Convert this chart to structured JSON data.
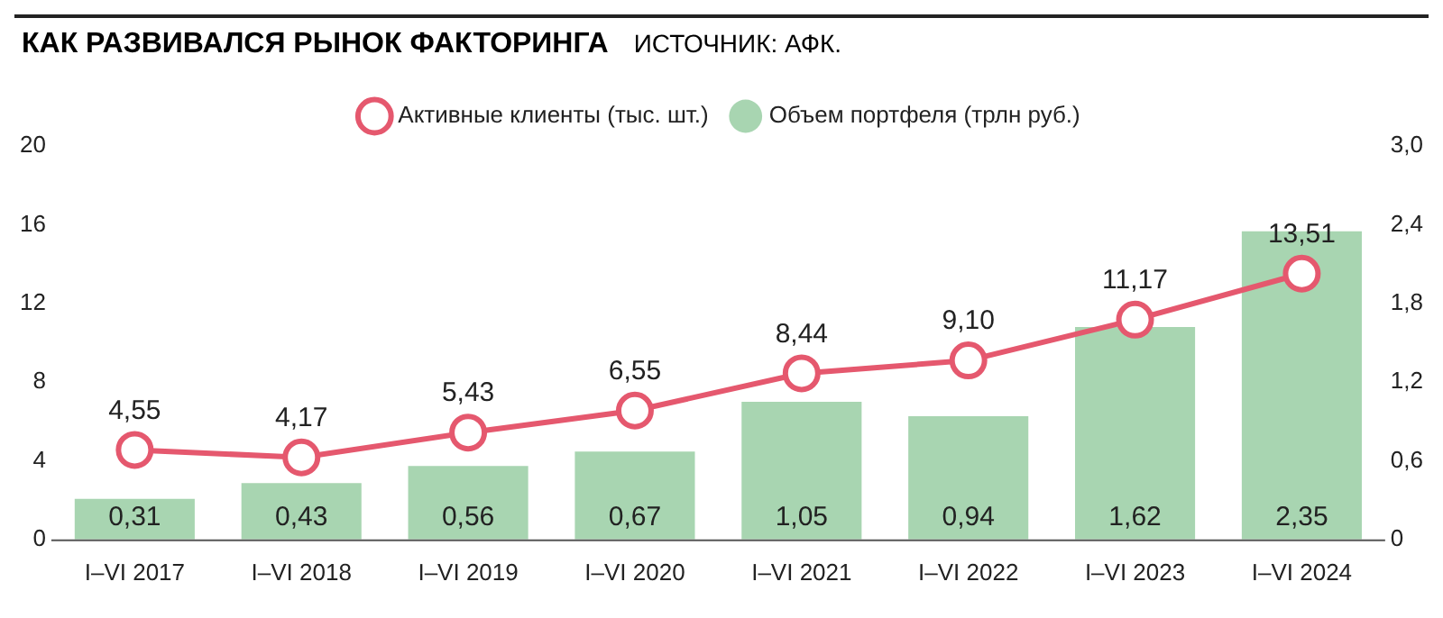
{
  "chart_data": {
    "type": "bar",
    "title": "КАК РАЗВИВАЛСЯ РЫНОК ФАКТОРИНГА",
    "subtitle": "ИСТОЧНИК: АФК.",
    "categories": [
      "I–VI 2017",
      "I–VI 2018",
      "I–VI 2019",
      "I–VI 2020",
      "I–VI 2021",
      "I–VI 2022",
      "I–VI 2023",
      "I–VI 2024"
    ],
    "series": [
      {
        "name": "Активные клиенты (тыс. шт.)",
        "type": "line",
        "axis": "y",
        "color": "#e5586e",
        "values": [
          4.55,
          4.17,
          5.43,
          6.55,
          8.44,
          9.1,
          11.17,
          13.51
        ],
        "value_labels": [
          "4,55",
          "4,17",
          "5,43",
          "6,55",
          "8,44",
          "9,10",
          "11,17",
          "13,51"
        ]
      },
      {
        "name": "Объем портфеля (трлн руб.)",
        "axis": "y2",
        "color": "#a8d5b1",
        "values": [
          0.31,
          0.43,
          0.56,
          0.67,
          1.05,
          0.94,
          1.62,
          2.35
        ],
        "value_labels": [
          "0,31",
          "0,43",
          "0,56",
          "0,67",
          "1,05",
          "0,94",
          "1,62",
          "2,35"
        ]
      }
    ],
    "ylim": [
      0,
      20
    ],
    "yticks": [
      0,
      4,
      8,
      12,
      16,
      20
    ],
    "y2lim": [
      0,
      3
    ],
    "y2ticks": [
      0,
      {
        "value": 0.6,
        "label": "0,6"
      },
      {
        "value": 1.2,
        "label": "1,2"
      },
      {
        "value": 1.8,
        "label": "1,8"
      },
      {
        "value": 2.4,
        "label": "2,4"
      },
      {
        "value": 3,
        "label": "3,0"
      }
    ],
    "grid": false,
    "legend": "top",
    "marker": "circle",
    "line_style": "solid"
  }
}
